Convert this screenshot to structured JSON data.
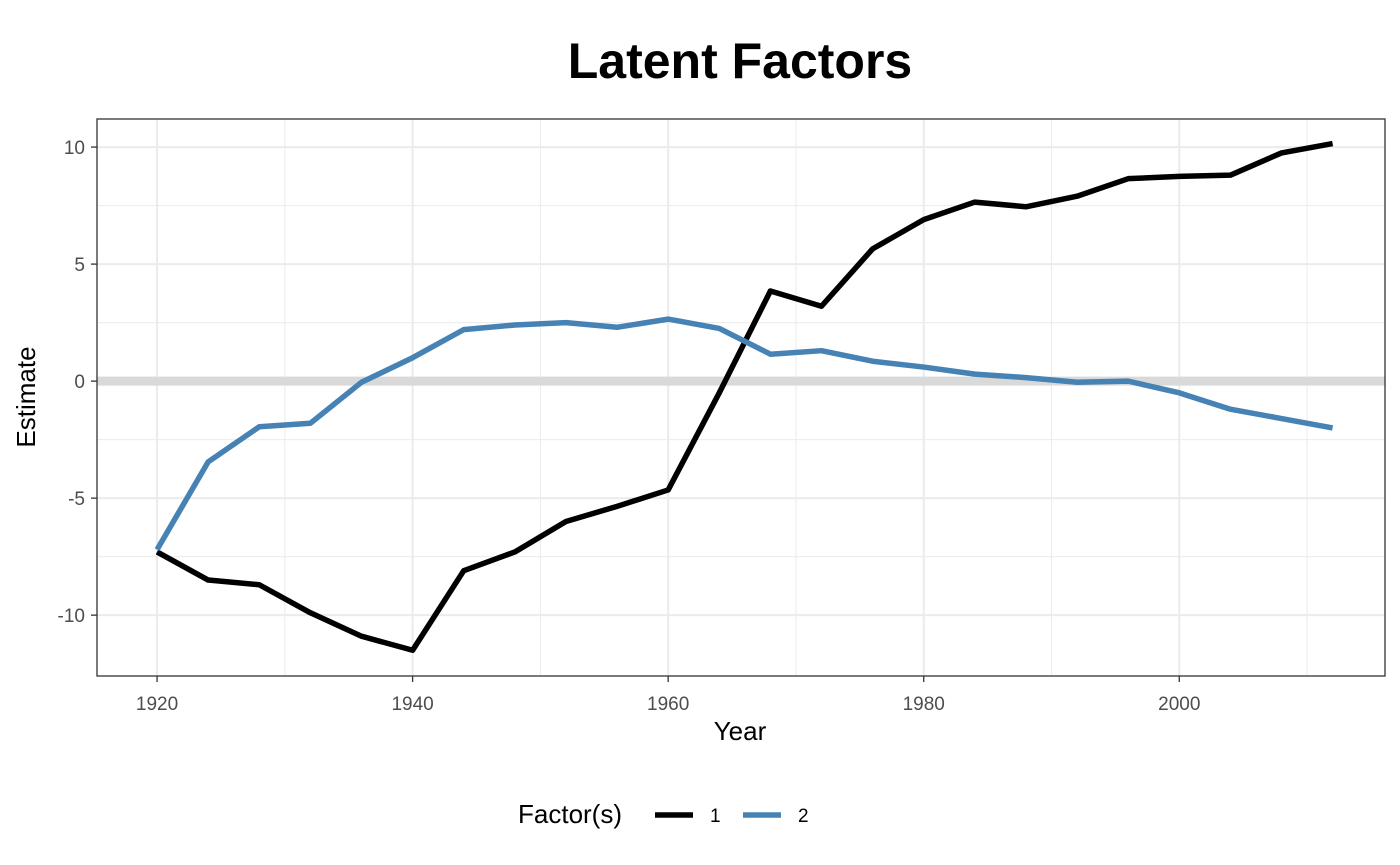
{
  "chart_data": {
    "type": "line",
    "title": "Latent Factors",
    "xlabel": "Year",
    "ylabel": "Estimate",
    "xlim": [
      1915.3,
      2016.1
    ],
    "ylim": [
      -12.6,
      11.2
    ],
    "x_ticks": [
      1920,
      1940,
      1960,
      1980,
      2000
    ],
    "x_tick_labels": [
      "1920",
      "1940",
      "1960",
      "1980",
      "2000"
    ],
    "x_minor_ticks": [
      1930,
      1950,
      1970,
      1990,
      2010
    ],
    "y_ticks": [
      -10,
      -5,
      0,
      5,
      10
    ],
    "y_tick_labels": [
      "-10",
      "-5",
      "0",
      "5",
      "10"
    ],
    "y_minor_ticks": [
      -7.5,
      -2.5,
      2.5,
      7.5
    ],
    "grid": true,
    "reference_line": {
      "y": 0,
      "color": "#d9d9d9"
    },
    "legend": {
      "title": "Factor(s)",
      "position": "bottom"
    },
    "x": [
      1920,
      1924,
      1928,
      1932,
      1936,
      1940,
      1944,
      1948,
      1952,
      1956,
      1960,
      1964,
      1968,
      1972,
      1976,
      1980,
      1984,
      1988,
      1992,
      1996,
      2000,
      2004,
      2008,
      2012
    ],
    "series": [
      {
        "name": "1",
        "color": "#000000",
        "values": [
          -7.3,
          -8.5,
          -8.7,
          -9.9,
          -10.9,
          -11.5,
          -8.1,
          -7.3,
          -6.0,
          -5.35,
          -4.65,
          -0.5,
          3.85,
          3.2,
          5.65,
          6.9,
          7.65,
          7.45,
          7.9,
          8.65,
          8.75,
          8.8,
          9.75,
          10.15
        ]
      },
      {
        "name": "2",
        "color": "#4682b4",
        "values": [
          -7.2,
          -3.45,
          -1.95,
          -1.8,
          -0.05,
          1.0,
          2.2,
          2.4,
          2.5,
          2.3,
          2.65,
          2.25,
          1.15,
          1.3,
          0.85,
          0.6,
          0.3,
          0.15,
          -0.05,
          0.0,
          -0.5,
          -1.2,
          -1.6,
          -2.0
        ]
      }
    ]
  }
}
